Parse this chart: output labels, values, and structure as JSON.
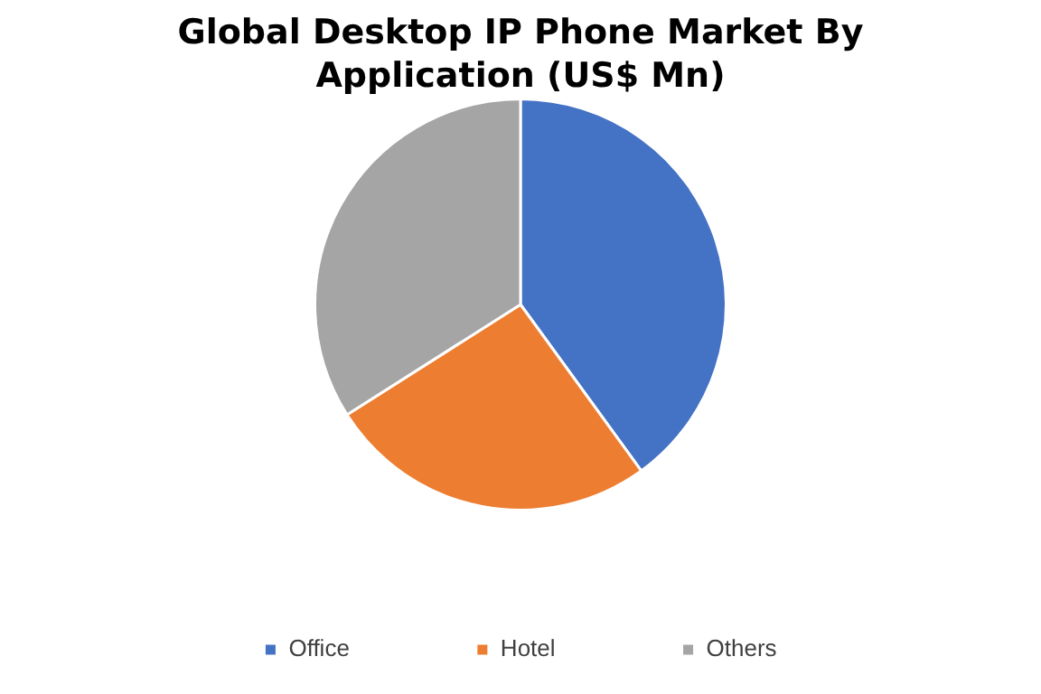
{
  "chart_data": {
    "type": "pie",
    "title": "Global Desktop IP Phone Market By Application (US$ Mn)",
    "categories": [
      "Office",
      "Hotel",
      "Others"
    ],
    "values": [
      40,
      26,
      34
    ],
    "colors": [
      "#4472c4",
      "#ed7d31",
      "#a5a5a5"
    ],
    "legend": "bottom"
  }
}
